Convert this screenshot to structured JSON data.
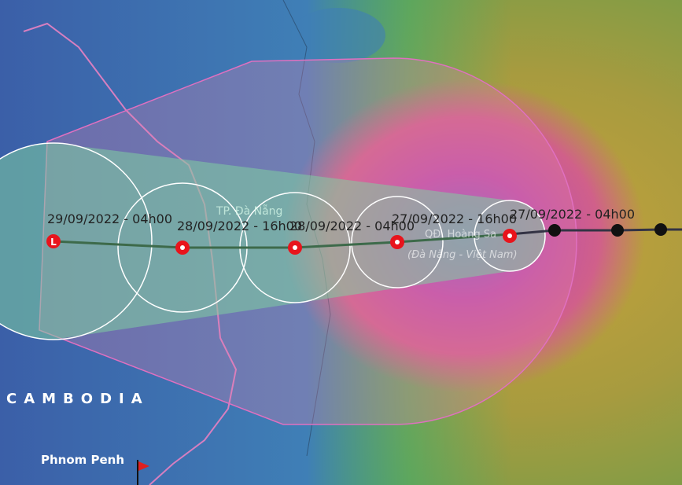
{
  "track": {
    "points": [
      {
        "label": "29/09/2022 - 04h00",
        "symbol": "L"
      },
      {
        "label": "28/09/2022 - 16h00"
      },
      {
        "label": "28/09/2022 - 04h00"
      },
      {
        "label": "27/09/2022 - 16h00"
      },
      {
        "label": "27/09/2022 - 04h00"
      }
    ]
  },
  "places": {
    "country": "CAMBODIA",
    "city": "Phnom Penh",
    "danang": "TP. Đà Nẵng",
    "islands": "QĐ. Hoàng Sa",
    "islands_note": "(Đà Nẵng - Việt Nam)"
  }
}
